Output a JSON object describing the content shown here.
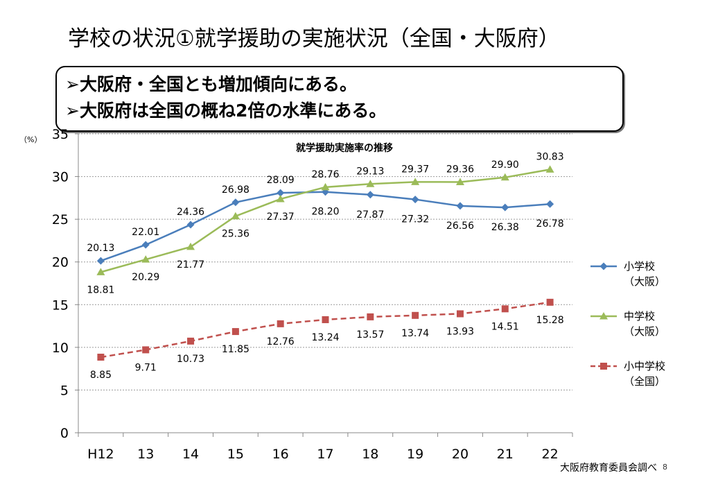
{
  "slide": {
    "title": "学校の状況①就学援助の実施状況（全国・大阪府）",
    "callout": [
      "➢大阪府・全国とも増加傾向にある。",
      "➢大阪府は全国の概ね2倍の水準にある。"
    ],
    "source": "大阪府教育委員会調べ",
    "page_number": "8"
  },
  "chart_data": {
    "type": "line",
    "title": "就学援助実施率の推移",
    "y_unit_label": "（%）",
    "categories": [
      "H12",
      "13",
      "14",
      "15",
      "16",
      "17",
      "18",
      "19",
      "20",
      "21",
      "22"
    ],
    "ylim": [
      0,
      35
    ],
    "yticks": [
      0,
      5,
      10,
      15,
      20,
      25,
      30,
      35
    ],
    "grid": true,
    "legend_position": "right",
    "series": [
      {
        "name": "小学校\n（大阪）",
        "values": [
          20.13,
          22.01,
          24.36,
          26.98,
          28.09,
          28.2,
          27.87,
          27.32,
          26.56,
          26.38,
          26.78
        ],
        "labels": [
          "20.13",
          "22.01",
          "24.36",
          "26.98",
          "28.09",
          "28.20",
          "27.87",
          "27.32",
          "26.56",
          "26.38",
          "26.78"
        ],
        "color": "#4a7ebb",
        "marker": "diamond",
        "dash": "solid"
      },
      {
        "name": "中学校\n（大阪）",
        "values": [
          18.81,
          20.29,
          21.77,
          25.36,
          27.37,
          28.76,
          29.13,
          29.37,
          29.36,
          29.9,
          30.83
        ],
        "labels": [
          "18.81",
          "20.29",
          "21.77",
          "25.36",
          "27.37",
          "28.76",
          "29.13",
          "29.37",
          "29.36",
          "29.90",
          "30.83"
        ],
        "color": "#9bbb59",
        "marker": "triangle",
        "dash": "solid"
      },
      {
        "name": "小中学校\n（全国）",
        "values": [
          8.85,
          9.71,
          10.73,
          11.85,
          12.76,
          13.24,
          13.57,
          13.74,
          13.93,
          14.51,
          15.28
        ],
        "labels": [
          "8.85",
          "9.71",
          "10.73",
          "11.85",
          "12.76",
          "13.24",
          "13.57",
          "13.74",
          "13.93",
          "14.51",
          "15.28"
        ],
        "color": "#c0504d",
        "marker": "square",
        "dash": "dashed"
      }
    ]
  }
}
